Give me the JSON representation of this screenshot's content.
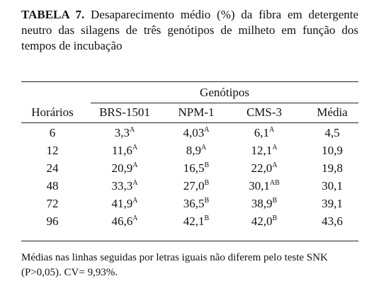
{
  "caption": {
    "label": "TABELA 7.",
    "text": "Desaparecimento médio (%) da fibra em detergente neutro das silagens de três genótipos de milheto em função dos tempos de incubação"
  },
  "table": {
    "group_header": "Genótipos",
    "columns": [
      "Horários",
      "BRS-1501",
      "NPM-1",
      "CMS-3",
      "Média"
    ],
    "rows": [
      [
        {
          "value": "6"
        },
        {
          "value": "3,3",
          "sup": "A"
        },
        {
          "value": "4,03",
          "sup": "A"
        },
        {
          "value": "6,1",
          "sup": "A"
        },
        {
          "value": "4,5"
        }
      ],
      [
        {
          "value": "12"
        },
        {
          "value": "11,6",
          "sup": "A"
        },
        {
          "value": "8,9",
          "sup": "A"
        },
        {
          "value": "12,1",
          "sup": "A"
        },
        {
          "value": "10,9"
        }
      ],
      [
        {
          "value": "24"
        },
        {
          "value": "20,9",
          "sup": "A"
        },
        {
          "value": "16,5",
          "sup": "B"
        },
        {
          "value": "22,0",
          "sup": "A"
        },
        {
          "value": "19,8"
        }
      ],
      [
        {
          "value": "48"
        },
        {
          "value": "33,3",
          "sup": "A"
        },
        {
          "value": "27,0",
          "sup": "B"
        },
        {
          "value": "30,1",
          "sup": "AB"
        },
        {
          "value": "30,1"
        }
      ],
      [
        {
          "value": "72"
        },
        {
          "value": "41,9",
          "sup": "A"
        },
        {
          "value": "36,5",
          "sup": "B"
        },
        {
          "value": "38,9",
          "sup": "B"
        },
        {
          "value": "39,1"
        }
      ],
      [
        {
          "value": "96"
        },
        {
          "value": "46,6",
          "sup": "A"
        },
        {
          "value": "42,1",
          "sup": "B"
        },
        {
          "value": "42,0",
          "sup": "B"
        },
        {
          "value": "43,6"
        }
      ]
    ]
  },
  "footnote": "Médias nas linhas seguidas por letras iguais não diferem pelo teste SNK (P>0,05). CV= 9,93%."
}
